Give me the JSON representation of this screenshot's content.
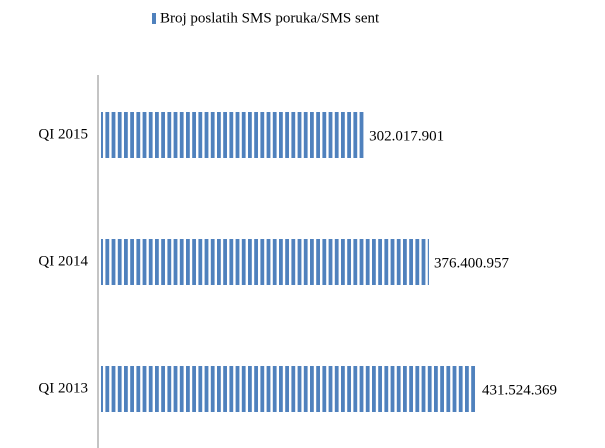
{
  "chart_data": {
    "type": "bar",
    "orientation": "horizontal",
    "categories": [
      "QI 2015",
      "QI 2014",
      "QI 2013"
    ],
    "series": [
      {
        "name": "Broj poslatih SMS poruka/SMS sent",
        "color": "#4f81bd",
        "values": [
          302017901,
          376400957,
          431524369
        ],
        "value_labels": [
          "302.017.901",
          "376.400.957",
          "431.524.369"
        ]
      }
    ],
    "legend": "top"
  }
}
